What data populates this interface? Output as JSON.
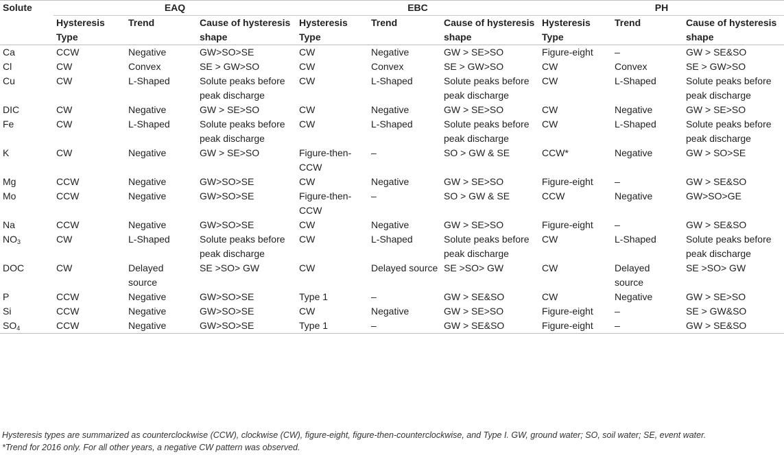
{
  "table": {
    "col_solute": "Solute",
    "groups": [
      "EAQ",
      "EBC",
      "PH"
    ],
    "subheaders": {
      "type": "Hysteresis Type",
      "trend": "Trend",
      "cause": "Cause of hysteresis shape"
    },
    "rows": [
      {
        "solute": "Ca",
        "sub": "",
        "eaq": [
          "CCW",
          "Negative",
          "GW>SO>SE"
        ],
        "ebc": [
          "CW",
          "Negative",
          "GW > SE>SO"
        ],
        "ph": [
          "Figure-eight",
          "–",
          "GW > SE&SO"
        ]
      },
      {
        "solute": "Cl",
        "sub": "",
        "eaq": [
          "CW",
          "Convex",
          "SE > GW>SO"
        ],
        "ebc": [
          "CW",
          "Convex",
          "SE > GW>SO"
        ],
        "ph": [
          "CW",
          "Convex",
          "SE > GW>SO"
        ]
      },
      {
        "solute": "Cu",
        "sub": "",
        "eaq": [
          "CW",
          "L-Shaped",
          "Solute peaks before peak discharge"
        ],
        "ebc": [
          "CW",
          "L-Shaped",
          "Solute peaks before peak discharge"
        ],
        "ph": [
          "CW",
          "L-Shaped",
          "Solute peaks before peak discharge"
        ]
      },
      {
        "solute": "DIC",
        "sub": "",
        "eaq": [
          "CW",
          "Negative",
          "GW > SE>SO"
        ],
        "ebc": [
          "CW",
          "Negative",
          "GW > SE>SO"
        ],
        "ph": [
          "CW",
          "Negative",
          "GW > SE>SO"
        ]
      },
      {
        "solute": "Fe",
        "sub": "",
        "eaq": [
          "CW",
          "L-Shaped",
          "Solute peaks before peak discharge"
        ],
        "ebc": [
          "CW",
          "L-Shaped",
          "Solute peaks before peak discharge"
        ],
        "ph": [
          "CW",
          "L-Shaped",
          "Solute peaks before peak discharge"
        ]
      },
      {
        "solute": "K",
        "sub": "",
        "eaq": [
          "CW",
          "Negative",
          "GW > SE>SO"
        ],
        "ebc": [
          "Figure-then-CCW",
          "–",
          "SO > GW & SE"
        ],
        "ph": [
          "CCW*",
          "Negative",
          "GW > SO>SE"
        ]
      },
      {
        "solute": "Mg",
        "sub": "",
        "eaq": [
          "CCW",
          "Negative",
          "GW>SO>SE"
        ],
        "ebc": [
          "CW",
          "Negative",
          "GW > SE>SO"
        ],
        "ph": [
          "Figure-eight",
          "–",
          "GW > SE&SO"
        ]
      },
      {
        "solute": "Mo",
        "sub": "",
        "eaq": [
          "CCW",
          "Negative",
          "GW>SO>SE"
        ],
        "ebc": [
          "Figure-then-CCW",
          "–",
          "SO > GW & SE"
        ],
        "ph": [
          "CCW",
          "Negative",
          "GW>SO>GE"
        ]
      },
      {
        "solute": "Na",
        "sub": "",
        "eaq": [
          "CCW",
          "Negative",
          "GW>SO>SE"
        ],
        "ebc": [
          "CW",
          "Negative",
          "GW > SE>SO"
        ],
        "ph": [
          "Figure-eight",
          "–",
          "GW > SE&SO"
        ]
      },
      {
        "solute": "NO",
        "sub": "3",
        "eaq": [
          "CW",
          "L-Shaped",
          "Solute peaks before peak discharge"
        ],
        "ebc": [
          "CW",
          "L-Shaped",
          "Solute peaks before peak discharge"
        ],
        "ph": [
          "CW",
          "L-Shaped",
          "Solute peaks before peak discharge"
        ]
      },
      {
        "solute": "DOC",
        "sub": "",
        "eaq": [
          "CW",
          "Delayed source",
          "SE >SO> GW"
        ],
        "ebc": [
          "CW",
          "Delayed source",
          "SE >SO> GW"
        ],
        "ph": [
          "CW",
          "Delayed source",
          "SE >SO> GW"
        ]
      },
      {
        "solute": "P",
        "sub": "",
        "eaq": [
          "CCW",
          "Negative",
          "GW>SO>SE"
        ],
        "ebc": [
          "Type 1",
          "–",
          "GW > SE&SO"
        ],
        "ph": [
          "CW",
          "Negative",
          "GW > SE>SO"
        ]
      },
      {
        "solute": "Si",
        "sub": "",
        "eaq": [
          "CCW",
          "Negative",
          "GW>SO>SE"
        ],
        "ebc": [
          "CW",
          "Negative",
          "GW > SE>SO"
        ],
        "ph": [
          "Figure-eight",
          "–",
          "SE > GW&SO"
        ]
      },
      {
        "solute": "SO",
        "sub": "4",
        "eaq": [
          "CCW",
          "Negative",
          "GW>SO>SE"
        ],
        "ebc": [
          "Type 1",
          "–",
          "GW > SE&SO"
        ],
        "ph": [
          "Figure-eight",
          "–",
          "GW > SE&SO"
        ]
      }
    ]
  },
  "footnotes": [
    "Hysteresis types are summarized as counterclockwise (CCW), clockwise (CW), figure-eight, figure-then-counterclockwise, and Type I. GW, ground water; SO, soil water; SE, event water.",
    "*Trend for 2016 only. For all other years, a negative CW pattern was observed."
  ]
}
